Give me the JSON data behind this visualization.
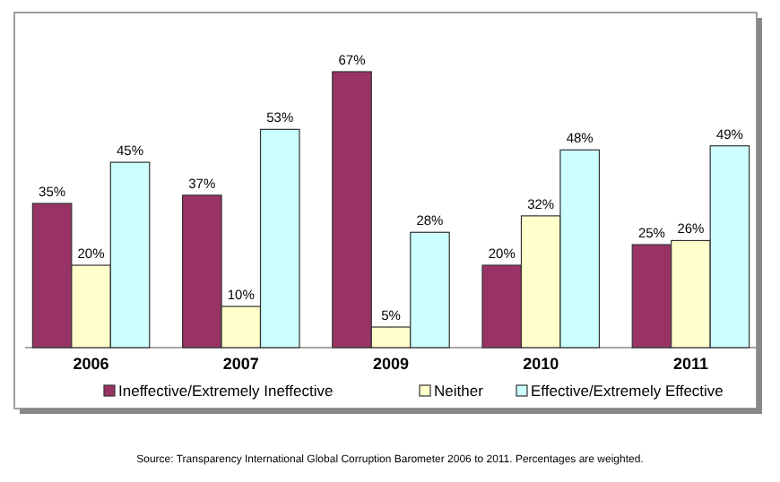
{
  "chart_data": {
    "type": "bar",
    "categories": [
      "2006",
      "2007",
      "2009",
      "2010",
      "2011"
    ],
    "series": [
      {
        "name": "Ineffective/Extremely Ineffective",
        "color": "#993366",
        "values": [
          35,
          37,
          67,
          20,
          25
        ],
        "value_labels": [
          "35%",
          "37%",
          "67%",
          "20%",
          "25%"
        ]
      },
      {
        "name": "Neither",
        "color": "#ffffcc",
        "values": [
          20,
          10,
          5,
          32,
          26
        ],
        "value_labels": [
          "20%",
          "10%",
          "5%",
          "32%",
          "26%"
        ]
      },
      {
        "name": "Effective/Extremely Effective",
        "color": "#ccffff",
        "values": [
          45,
          53,
          28,
          48,
          49
        ],
        "value_labels": [
          "45%",
          "53%",
          "28%",
          "48%",
          "49%"
        ]
      }
    ],
    "legend": "bottom",
    "annotations": [
      "Source: Transparency International Global Corruption Barometer 2006 to 2011. Percentages are weighted."
    ]
  }
}
